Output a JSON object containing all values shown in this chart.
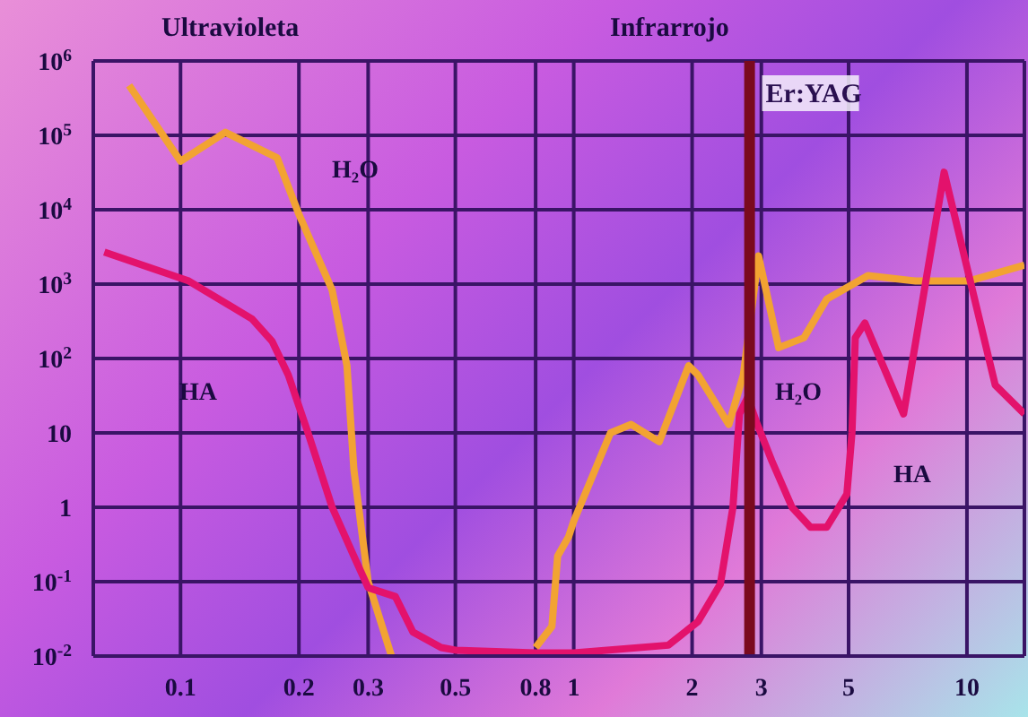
{
  "chart_data": {
    "type": "line",
    "log": "xy",
    "grid": true,
    "line_style": "solid",
    "marker": "none",
    "xlim": [
      0.06,
      14
    ],
    "xticks": [
      0.1,
      0.2,
      0.3,
      0.5,
      0.8,
      1,
      2,
      3,
      5,
      10
    ],
    "ylim": [
      0.01,
      1000000
    ],
    "yticks": [
      {
        "value": 0.01,
        "label": "10$^{-2}$"
      },
      {
        "value": 0.1,
        "label": "10$^{-1}$"
      },
      1,
      10,
      {
        "value": 100,
        "label": "10$^{2}$"
      },
      {
        "value": 1000,
        "label": "10$^{3}$"
      },
      {
        "value": 10000,
        "label": "10$^{4}$"
      },
      {
        "value": 100000,
        "label": "10$^{5}$"
      },
      {
        "value": 1000000,
        "label": "10$^{6}$"
      }
    ],
    "series": [
      {
        "color": "#f2a332",
        "x": [
          0.074,
          0.1,
          0.13,
          0.176,
          0.2,
          0.243,
          0.265,
          0.276,
          0.3,
          0.344,
          0.5,
          0.8,
          0.88,
          0.91,
          0.97,
          1,
          1.24,
          1.4,
          1.65,
          1.96,
          2.07,
          2.48,
          2.7,
          2.95,
          3.32,
          3.85,
          4.4,
          5.6,
          7.4,
          10.1,
          14
        ],
        "values": [
          470000,
          45000,
          110000,
          50000,
          8700,
          830,
          80,
          3.2,
          0.1,
          0.01,
          null,
          0.013,
          0.025,
          0.22,
          0.4,
          0.65,
          10,
          13,
          7.6,
          80,
          60,
          13,
          60,
          2400,
          140,
          190,
          630,
          1300,
          1100,
          1100,
          1800
        ]
      },
      {
        "color": "#e3126c",
        "x": [
          0.064,
          0.105,
          0.152,
          0.171,
          0.188,
          0.211,
          0.243,
          0.276,
          0.3,
          0.352,
          0.39,
          0.46,
          0.5,
          0.8,
          1,
          1.74,
          2.07,
          2.36,
          2.54,
          2.64,
          2.77,
          2.93,
          3.19,
          3.59,
          4,
          4.4,
          4.95,
          5.1,
          5.2,
          5.5,
          6.9,
          8.75,
          11.8,
          14
        ],
        "values": [
          2700,
          1100,
          340,
          170,
          60,
          10,
          1,
          0.22,
          0.083,
          0.063,
          0.021,
          0.013,
          0.012,
          0.011,
          0.011,
          0.014,
          0.029,
          0.093,
          1,
          18,
          30,
          13,
          4.2,
          1,
          0.54,
          0.54,
          1.5,
          10,
          190,
          300,
          18,
          32000,
          44,
          18
        ]
      }
    ],
    "ref_lines": [
      {
        "axis": "x",
        "value": 2.8,
        "label": "Er:YAG",
        "color": "#7a0a1e"
      }
    ],
    "annotations": [
      "Ultravioleta",
      "Infrarrojo",
      "H₂O",
      "H₂O",
      "HA",
      "HA"
    ]
  }
}
